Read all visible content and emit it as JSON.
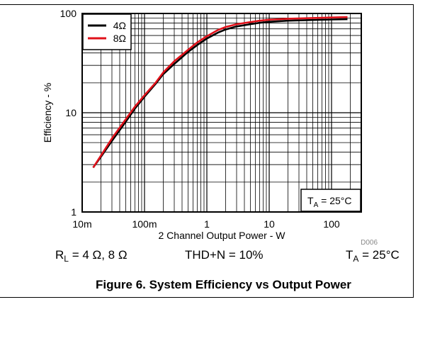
{
  "figure": {
    "caption": "Figure 6. System Efficiency vs Output Power",
    "code": "D006",
    "conditions": {
      "load_prefix": "R",
      "load_sub": "L",
      "load_value": " = 4 Ω, 8 Ω",
      "thd": "THD+N = 10%",
      "temp_prefix": "T",
      "temp_sub": "A",
      "temp_value": " = 25°C"
    }
  },
  "chart_data": {
    "type": "line",
    "title": "",
    "xlabel": "2 Channel Output Power - W",
    "ylabel": "Efficiency - %",
    "xscale": "log",
    "yscale": "log",
    "xlim": [
      0.01,
      300
    ],
    "ylim": [
      1,
      100
    ],
    "x_ticks": [
      {
        "value": 0.01,
        "label": "10m"
      },
      {
        "value": 0.1,
        "label": "100m"
      },
      {
        "value": 1,
        "label": "1"
      },
      {
        "value": 10,
        "label": "10"
      },
      {
        "value": 100,
        "label": "100"
      }
    ],
    "y_ticks": [
      {
        "value": 1,
        "label": "1"
      },
      {
        "value": 10,
        "label": "10"
      },
      {
        "value": 100,
        "label": "100"
      }
    ],
    "grid": true,
    "legend_position": "top-left",
    "inset_label": {
      "prefix": "T",
      "sub": "A",
      "value": " = 25°C",
      "position": "bottom-right"
    },
    "series": [
      {
        "name": "4Ω",
        "color": "#000000",
        "x": [
          0.015,
          0.02,
          0.03,
          0.05,
          0.07,
          0.1,
          0.15,
          0.2,
          0.3,
          0.5,
          0.7,
          1,
          1.5,
          2,
          3,
          5,
          7,
          10,
          20,
          50,
          100,
          180
        ],
        "y": [
          2.8,
          3.6,
          5.2,
          8.1,
          11,
          14.5,
          19.5,
          24.5,
          31,
          41,
          48,
          56,
          64,
          69,
          74,
          78,
          80.5,
          82.5,
          84.5,
          86,
          87,
          87.5
        ]
      },
      {
        "name": "8Ω",
        "color": "#e0111a",
        "x": [
          0.015,
          0.02,
          0.03,
          0.05,
          0.07,
          0.1,
          0.15,
          0.2,
          0.3,
          0.5,
          0.7,
          1,
          1.5,
          2,
          3,
          5,
          7,
          10,
          20,
          50,
          100,
          180
        ],
        "y": [
          2.8,
          3.7,
          5.5,
          8.6,
          11.5,
          15,
          20,
          25.5,
          33,
          43,
          51,
          59,
          68,
          73,
          78,
          82,
          84.5,
          86.5,
          88.5,
          90,
          91,
          92
        ]
      }
    ]
  }
}
